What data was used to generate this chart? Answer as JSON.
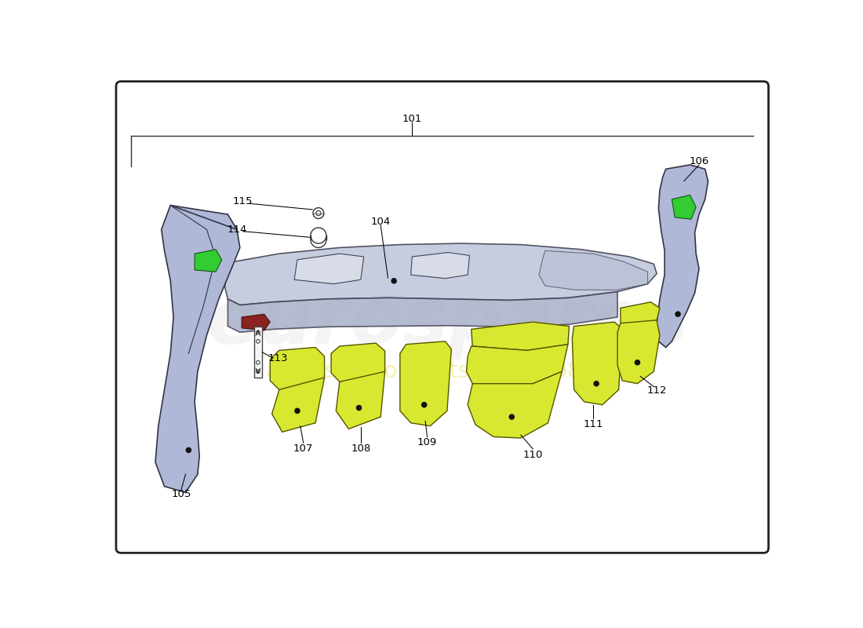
{
  "background_color": "#ffffff",
  "border_color": "#222222",
  "diffusor_color": "#c0c8dc",
  "diffusor_edge": "#444455",
  "side_panel_color": "#b0b8d8",
  "side_panel_edge": "#333344",
  "fin_color": "#d8e830",
  "fin_edge": "#555500",
  "green_accent": "#33cc33",
  "dark_red": "#8B2222",
  "strip_color": "#f5f5f5",
  "watermark_color": "#e0e0e0",
  "watermark_yellow": "#e8d840"
}
